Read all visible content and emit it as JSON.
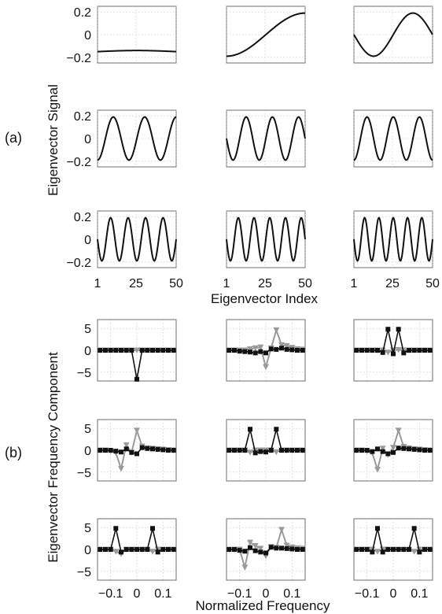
{
  "chart_data": [
    {
      "type": "line",
      "panel_label": "(a)",
      "xlabel": "Eigenvector Index",
      "ylabel": "Eigenvector Signal",
      "grid": true,
      "xlim": [
        1,
        50
      ],
      "ylim": [
        -0.25,
        0.25
      ],
      "xticks": [
        1,
        25,
        50
      ],
      "xticklabels": [
        "1",
        "25",
        "50"
      ],
      "yticks": [
        0.2,
        0,
        -0.2
      ],
      "yticklabels_first_row": [
        "0.2",
        "0",
        "−0.2"
      ],
      "yticklabels": [
        "0.2",
        "0",
        "−0.2"
      ],
      "line_color": "#111111",
      "panels": [
        {
          "amplitude": 0.15,
          "cycles": 0.0,
          "phase_deg": 0,
          "offset": -0.15,
          "bow": 0.01
        },
        {
          "amplitude": 0.19,
          "cycles": 0.5,
          "phase_deg": 180
        },
        {
          "amplitude": 0.19,
          "cycles": 1.0,
          "phase_deg": 90
        },
        {
          "amplitude": 0.19,
          "cycles": 2.5,
          "phase_deg": 180
        },
        {
          "amplitude": 0.19,
          "cycles": 3.0,
          "phase_deg": 90
        },
        {
          "amplitude": 0.19,
          "cycles": 3.0,
          "phase_deg": 180
        },
        {
          "amplitude": 0.19,
          "cycles": 4.5,
          "phase_deg": 90
        },
        {
          "amplitude": 0.19,
          "cycles": 5.0,
          "phase_deg": 90
        },
        {
          "amplitude": 0.19,
          "cycles": 5.5,
          "phase_deg": 90
        }
      ]
    },
    {
      "type": "line",
      "panel_label": "(b)",
      "xlabel": "Normalized Frequency",
      "ylabel": "Eigenvector Frequency Component",
      "grid": true,
      "xlim": [
        -0.15,
        0.15
      ],
      "ylim": [
        -7,
        7
      ],
      "xticks": [
        -0.1,
        0,
        0.1
      ],
      "xticklabels": [
        "−0.1",
        "0",
        "0.1"
      ],
      "yticks": [
        5,
        0,
        -5
      ],
      "yticklabels": [
        "5",
        "0",
        "−5"
      ],
      "freq_points": [
        -0.14,
        -0.12,
        -0.1,
        -0.08,
        -0.06,
        -0.04,
        -0.02,
        0,
        0.02,
        0.04,
        0.06,
        0.08,
        0.1,
        0.12,
        0.14
      ],
      "series_styles": [
        {
          "marker": "square",
          "color": "#111111"
        },
        {
          "marker": "triangle-down",
          "color": "#9a9a9a"
        }
      ],
      "panels": [
        {
          "series": [
            {
              "values": [
                0,
                0,
                0,
                0,
                0,
                0,
                0,
                -6.6,
                0,
                0,
                0,
                0,
                0,
                0,
                0
              ]
            },
            {
              "values": [
                0,
                0,
                0,
                0,
                0,
                0,
                0,
                0,
                0,
                0,
                0,
                0,
                0,
                0,
                0
              ]
            }
          ]
        },
        {
          "series": [
            {
              "values": [
                0,
                0,
                -0.2,
                -0.3,
                -0.4,
                -0.6,
                -0.3,
                -0.6,
                0.3,
                0.2,
                0.5,
                0.2,
                0.1,
                0,
                0
              ]
            },
            {
              "values": [
                0,
                0,
                0,
                0,
                0.3,
                0.5,
                0.7,
                -3.8,
                0.5,
                4.6,
                1.2,
                1.0,
                0.6,
                0.3,
                0.2
              ]
            }
          ]
        },
        {
          "series": [
            {
              "values": [
                0,
                0,
                0,
                0,
                0,
                -0.5,
                4.8,
                -0.8,
                4.8,
                -0.6,
                0,
                0,
                0,
                0,
                0
              ]
            },
            {
              "values": [
                0,
                0,
                0,
                0,
                0,
                0,
                -0.5,
                0,
                0.1,
                0,
                0,
                0,
                0,
                0,
                0
              ]
            }
          ]
        },
        {
          "series": [
            {
              "values": [
                0,
                0,
                0,
                -0.2,
                -0.4,
                0.3,
                -0.5,
                -0.8,
                0.6,
                0.4,
                0.3,
                0.2,
                0.1,
                0,
                0
              ]
            },
            {
              "values": [
                0,
                0,
                -0.2,
                -0.6,
                -4.2,
                1.2,
                -0.5,
                4.5,
                0.9,
                0.5,
                0.4,
                0.3,
                0.2,
                0.1,
                0
              ]
            }
          ]
        },
        {
          "series": [
            {
              "values": [
                0,
                0,
                0,
                0,
                4.8,
                -0.6,
                -0.3,
                -0.4,
                0,
                4.8,
                0,
                0,
                0,
                0,
                0
              ]
            },
            {
              "values": [
                0,
                0,
                0,
                0,
                -0.5,
                0,
                0,
                0,
                0,
                -0.4,
                0,
                0,
                0,
                0,
                0
              ]
            }
          ]
        },
        {
          "series": [
            {
              "values": [
                0,
                0,
                0,
                -0.3,
                0.3,
                -0.3,
                -0.8,
                -0.5,
                0.5,
                0.4,
                0.3,
                0.2,
                0.1,
                0,
                0
              ]
            },
            {
              "values": [
                0,
                0,
                -0.2,
                -0.6,
                -4.4,
                0.4,
                -1.0,
                0.6,
                4.5,
                0.8,
                0.5,
                0.3,
                0.2,
                0.1,
                0
              ]
            }
          ]
        },
        {
          "series": [
            {
              "values": [
                0,
                0,
                0,
                4.8,
                -0.6,
                0,
                0,
                0,
                0,
                0,
                4.8,
                -0.6,
                0,
                0,
                0
              ]
            },
            {
              "values": [
                0,
                0,
                0,
                -0.5,
                -1.0,
                0,
                0,
                0,
                0,
                0,
                -0.5,
                0,
                0,
                0,
                0
              ]
            }
          ]
        },
        {
          "series": [
            {
              "values": [
                0,
                0,
                -0.2,
                -0.4,
                0.4,
                -0.3,
                -0.6,
                -0.8,
                0.5,
                0.3,
                0.3,
                0.2,
                0.1,
                0,
                0
              ]
            },
            {
              "values": [
                0,
                0,
                0,
                -4.1,
                1.6,
                0.8,
                0.2,
                -1.5,
                0.6,
                0.4,
                4.5,
                0.9,
                0.5,
                0.3,
                0.2
              ]
            }
          ]
        },
        {
          "series": [
            {
              "values": [
                0,
                0,
                0,
                -0.6,
                4.8,
                -0.6,
                0,
                0,
                0,
                0,
                0,
                4.8,
                -0.6,
                0,
                0
              ]
            },
            {
              "values": [
                0,
                0,
                0,
                0,
                -0.5,
                0,
                0,
                0,
                0,
                0,
                0,
                -0.5,
                0,
                0,
                0
              ]
            }
          ]
        }
      ]
    }
  ]
}
